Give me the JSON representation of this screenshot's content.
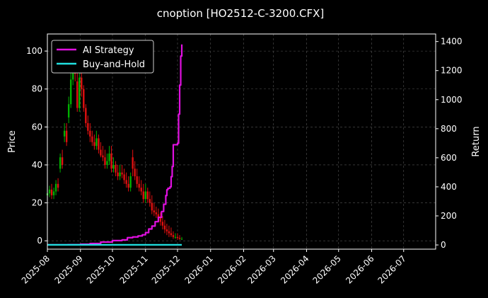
{
  "chart_data": {
    "type": "line",
    "title": "cnoption [HO2512-C-3200.CFX]",
    "xlabel": "",
    "ylabel": "Price",
    "ylabel_right": "Return",
    "x_ticks": [
      "2025-08",
      "2025-09",
      "2025-10",
      "2025-11",
      "2025-12",
      "2026-01",
      "2026-02",
      "2026-03",
      "2026-04",
      "2026-05",
      "2026-06",
      "2026-07"
    ],
    "x_range": [
      "2025-08-01",
      "2026-07-31"
    ],
    "ylim": [
      -4.4,
      109
    ],
    "yticks": [
      0,
      20,
      40,
      60,
      80,
      100
    ],
    "ylim_right": [
      -29,
      1452
    ],
    "yticks_right": [
      0,
      200,
      400,
      600,
      800,
      1000,
      1200,
      1400
    ],
    "grid": true,
    "legend_position": "top-left",
    "colors": {
      "background": "#000000",
      "text": "#ffffff",
      "grid": "#555555",
      "candle_up": "#00b000",
      "candle_down": "#e01010"
    },
    "series": [
      {
        "name": "AI Strategy",
        "axis": "right",
        "color": "#e010e0",
        "step": true,
        "x": [
          "2025-08-01",
          "2025-08-10",
          "2025-08-20",
          "2025-09-01",
          "2025-09-10",
          "2025-09-20",
          "2025-10-01",
          "2025-10-10",
          "2025-10-15",
          "2025-10-20",
          "2025-10-25",
          "2025-10-29",
          "2025-11-01",
          "2025-11-04",
          "2025-11-07",
          "2025-11-10",
          "2025-11-13",
          "2025-11-16",
          "2025-11-18",
          "2025-11-20",
          "2025-11-21",
          "2025-11-22",
          "2025-11-24",
          "2025-11-25",
          "2025-11-26",
          "2025-11-27",
          "2025-12-01",
          "2025-12-02",
          "2025-12-03",
          "2025-12-04",
          "2025-12-05"
        ],
        "values": [
          1,
          1,
          2,
          5,
          10,
          20,
          30,
          35,
          50,
          55,
          62,
          70,
          85,
          110,
          130,
          160,
          190,
          230,
          280,
          340,
          380,
          390,
          400,
          470,
          540,
          690,
          700,
          900,
          1100,
          1300,
          1380
        ]
      },
      {
        "name": "Buy-and-Hold",
        "axis": "right",
        "color": "#20e0e0",
        "step": false,
        "x": [
          "2025-08-01",
          "2025-12-05"
        ],
        "values": [
          1,
          1
        ]
      }
    ],
    "candles": {
      "axis": "left",
      "dates": [
        "2025-08-01",
        "2025-08-03",
        "2025-08-05",
        "2025-08-07",
        "2025-08-09",
        "2025-08-11",
        "2025-08-13",
        "2025-08-15",
        "2025-08-17",
        "2025-08-19",
        "2025-08-21",
        "2025-08-23",
        "2025-08-25",
        "2025-08-27",
        "2025-08-29",
        "2025-08-31",
        "2025-09-02",
        "2025-09-04",
        "2025-09-06",
        "2025-09-08",
        "2025-09-10",
        "2025-09-12",
        "2025-09-14",
        "2025-09-16",
        "2025-09-18",
        "2025-09-20",
        "2025-09-22",
        "2025-09-24",
        "2025-09-26",
        "2025-09-28",
        "2025-09-30",
        "2025-10-02",
        "2025-10-04",
        "2025-10-06",
        "2025-10-08",
        "2025-10-10",
        "2025-10-12",
        "2025-10-14",
        "2025-10-16",
        "2025-10-18",
        "2025-10-20",
        "2025-10-22",
        "2025-10-24",
        "2025-10-26",
        "2025-10-28",
        "2025-10-30",
        "2025-11-01",
        "2025-11-03",
        "2025-11-05",
        "2025-11-07",
        "2025-11-09",
        "2025-11-11",
        "2025-11-13",
        "2025-11-15",
        "2025-11-17",
        "2025-11-19",
        "2025-11-21",
        "2025-11-23",
        "2025-11-25",
        "2025-11-27",
        "2025-11-29",
        "2025-12-01",
        "2025-12-03",
        "2025-12-05"
      ],
      "open": [
        24,
        25,
        27,
        24,
        26,
        30,
        38,
        44,
        55,
        58,
        65,
        72,
        85,
        90,
        84,
        70,
        86,
        80,
        70,
        62,
        58,
        55,
        52,
        50,
        54,
        48,
        45,
        44,
        40,
        42,
        46,
        38,
        40,
        36,
        34,
        36,
        35,
        32,
        30,
        28,
        44,
        38,
        34,
        30,
        28,
        26,
        22,
        26,
        22,
        20,
        16,
        15,
        14,
        12,
        10,
        8,
        6,
        5,
        4,
        3,
        2,
        2,
        1.5,
        1
      ],
      "close": [
        25,
        27,
        24,
        26,
        30,
        28,
        44,
        40,
        58,
        52,
        72,
        85,
        90,
        88,
        70,
        86,
        80,
        70,
        62,
        58,
        55,
        52,
        50,
        54,
        48,
        45,
        44,
        40,
        42,
        46,
        38,
        40,
        36,
        34,
        36,
        35,
        32,
        30,
        28,
        34,
        38,
        34,
        30,
        28,
        26,
        22,
        26,
        22,
        20,
        16,
        15,
        14,
        12,
        10,
        8,
        6,
        5,
        4,
        3,
        2,
        2,
        1.5,
        1,
        1
      ],
      "high": [
        28,
        29,
        30,
        28,
        32,
        33,
        46,
        48,
        62,
        62,
        76,
        92,
        100,
        98,
        90,
        92,
        90,
        82,
        72,
        66,
        62,
        58,
        56,
        58,
        56,
        52,
        50,
        48,
        46,
        50,
        50,
        44,
        42,
        40,
        40,
        40,
        38,
        36,
        34,
        36,
        48,
        42,
        38,
        34,
        32,
        30,
        30,
        28,
        26,
        24,
        20,
        18,
        17,
        15,
        13,
        11,
        9,
        8,
        7,
        5,
        4,
        4,
        3,
        2
      ],
      "low": [
        22,
        23,
        22,
        22,
        24,
        26,
        36,
        38,
        52,
        50,
        62,
        70,
        82,
        84,
        68,
        68,
        76,
        68,
        60,
        56,
        52,
        50,
        48,
        48,
        46,
        44,
        42,
        38,
        38,
        40,
        36,
        36,
        34,
        32,
        32,
        33,
        30,
        28,
        26,
        26,
        34,
        32,
        28,
        26,
        24,
        20,
        20,
        20,
        18,
        14,
        13,
        12,
        10,
        8,
        6,
        4,
        3,
        2,
        2,
        1,
        1,
        0.5,
        0.5,
        0.5
      ]
    }
  }
}
